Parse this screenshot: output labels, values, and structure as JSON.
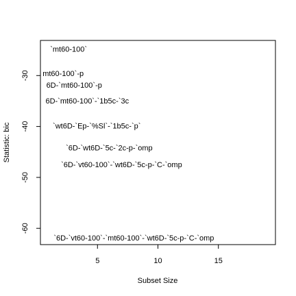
{
  "chart_data": {
    "type": "scatter",
    "x_label": "Subset Size",
    "y_label": "Statistic: bic",
    "xlim": [
      0.28,
      19.72
    ],
    "ylim": [
      -63.2,
      -23.1
    ],
    "xticks": [
      5,
      10,
      15
    ],
    "yticks": [
      -30,
      -40,
      -50,
      -60
    ],
    "points": [
      {
        "label": "`mt60-100`",
        "x": 2.61,
        "y": -24.9
      },
      {
        "label": "mt60-100`-p",
        "x": 2.16,
        "y": -29.7
      },
      {
        "label": "6D-`mt60-100`-p",
        "x": 3.07,
        "y": -32.0
      },
      {
        "label": "6D-`mt60-100`-`1b5c-`3c",
        "x": 4.15,
        "y": -35.1
      },
      {
        "label": "`wt6D-`Ep-`%Sl`-`1b5c-`p`",
        "x": 4.94,
        "y": -40.0
      },
      {
        "label": "`6D-`wt6D-`5c-`2c-p-`omp",
        "x": 5.97,
        "y": -44.3
      },
      {
        "label": "`6D-`vt60-100`-`wt6D-`5c-p-`C-`omp",
        "x": 6.99,
        "y": -47.6
      },
      {
        "label": "`6D-`vt60-100`-`mt60-100`-`wt6D-`5c-p-`C-`omp",
        "x": 8.01,
        "y": -62.0
      }
    ]
  }
}
